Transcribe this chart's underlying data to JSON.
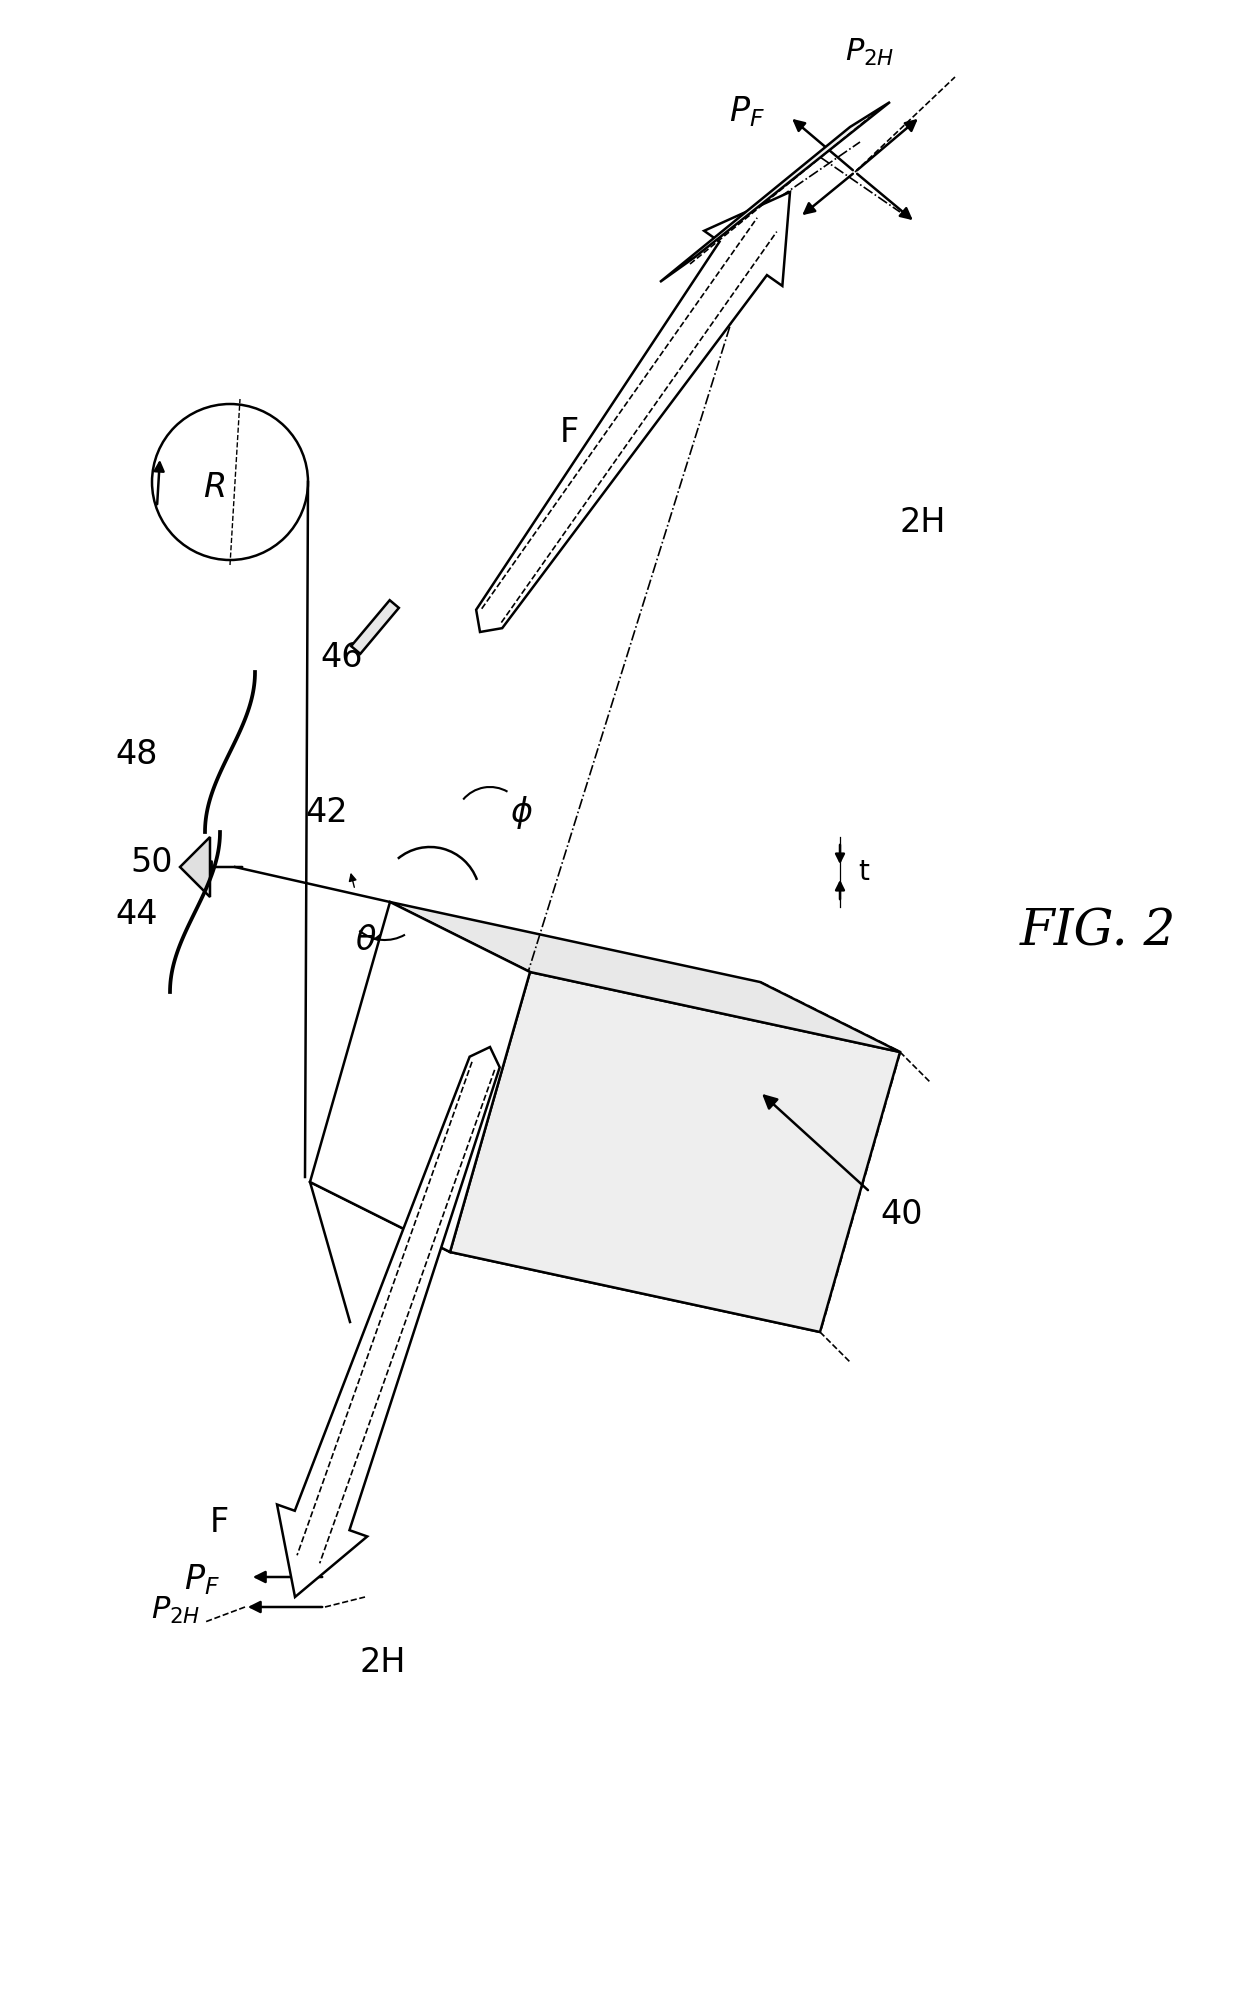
{
  "bg_color": "#ffffff",
  "line_color": "#000000",
  "fig_label": "FIG. 2",
  "lw": 1.8,
  "labels": {
    "2H_top": "2H",
    "F_top": "F",
    "R": "R",
    "46": "46",
    "42": "42",
    "50": "50",
    "48": "48",
    "44": "44",
    "40": "40",
    "theta": "θ",
    "phi": "φ",
    "t": "t",
    "2H_bottom": "2H",
    "F_bottom": "F"
  },
  "fs_main": 24,
  "fs_fig": 36
}
